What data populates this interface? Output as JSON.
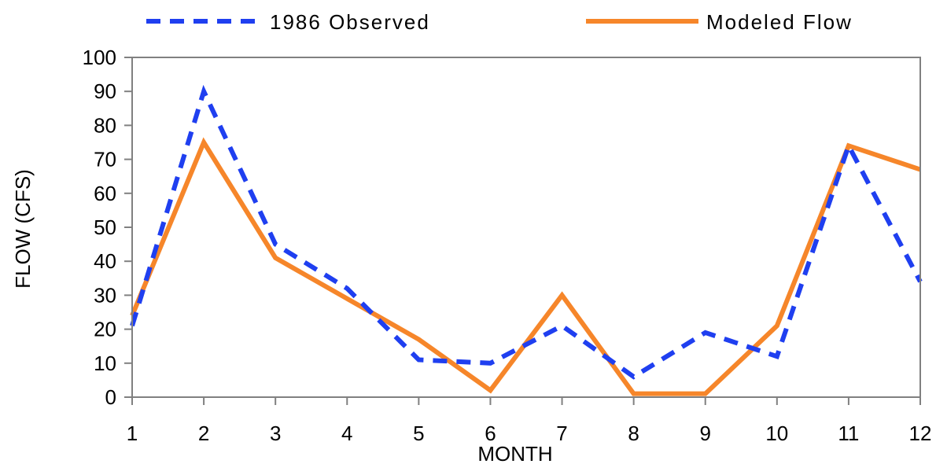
{
  "chart_data": {
    "type": "line",
    "title": "",
    "xlabel": "MONTH",
    "ylabel": "FLOW (CFS)",
    "x": [
      1,
      2,
      3,
      4,
      5,
      6,
      7,
      8,
      9,
      10,
      11,
      12
    ],
    "xlim": [
      1,
      12
    ],
    "ylim": [
      0,
      100
    ],
    "y_ticks": [
      0,
      10,
      20,
      30,
      40,
      50,
      60,
      70,
      80,
      90,
      100
    ],
    "grid": false,
    "legend_position": "top",
    "series": [
      {
        "name": "1986 Observed",
        "color": "#1f3ff0",
        "style": "dashed",
        "values": [
          21,
          90,
          45,
          32,
          11,
          10,
          21,
          6,
          19,
          12,
          74,
          34
        ]
      },
      {
        "name": "Modeled Flow",
        "color": "#f6862a",
        "style": "solid",
        "values": [
          24,
          75,
          41,
          29,
          17,
          2,
          30,
          1,
          1,
          21,
          74,
          67
        ]
      }
    ]
  }
}
